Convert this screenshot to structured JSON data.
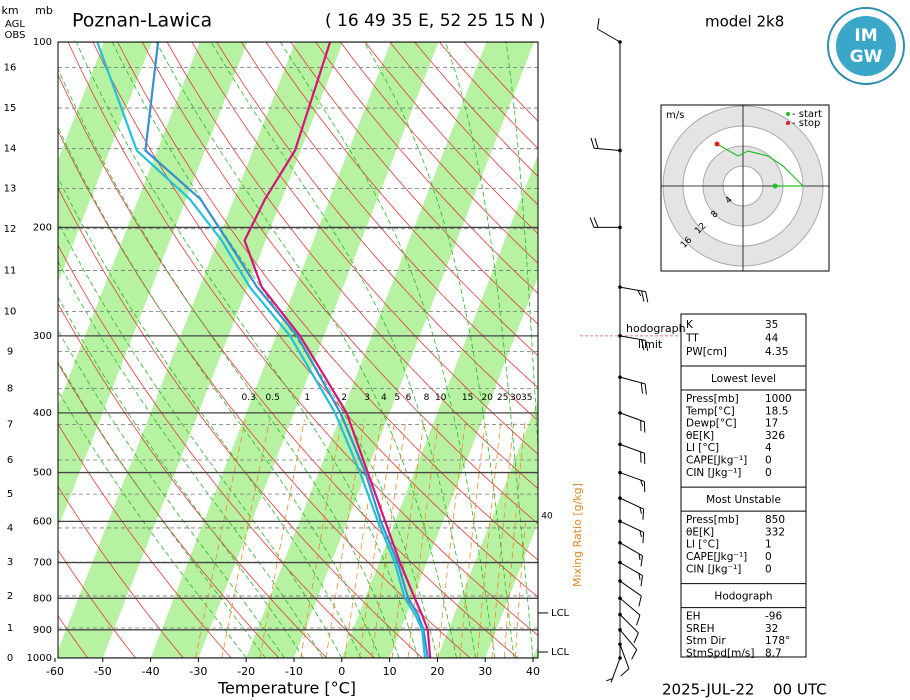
{
  "chart_data": {
    "type": "skewt",
    "title": "Poznan-Lawica",
    "subtitle": "( 16 49 35 E, 52 25 15 N )",
    "model": "model 2k8",
    "date": "2025-JUL-22",
    "time": "00 UTC",
    "x_label": "Temperature [°C]",
    "mixing_ratio_label": "Mixing Ratio [g/kg]",
    "height_unit": "km",
    "pressure_unit": "mb",
    "height_ref": [
      "AGL",
      "OBS"
    ],
    "xlim": [
      -60,
      40
    ],
    "xticks": [
      -60,
      -50,
      -40,
      -30,
      -20,
      -10,
      0,
      10,
      20,
      30,
      40
    ],
    "ylim": [
      1000,
      100
    ],
    "yticks": [
      100,
      200,
      300,
      400,
      500,
      600,
      700,
      800,
      900,
      1000
    ],
    "log_y": true,
    "height_ticks": [
      {
        "value": 0,
        "pressure": 1000
      },
      {
        "value": 1,
        "pressure": 894
      },
      {
        "value": 2,
        "pressure": 793
      },
      {
        "value": 3,
        "pressure": 699
      },
      {
        "value": 4,
        "pressure": 615
      },
      {
        "value": 5,
        "pressure": 542
      },
      {
        "value": 6,
        "pressure": 477
      },
      {
        "value": 7,
        "pressure": 418
      },
      {
        "value": 8,
        "pressure": 365
      },
      {
        "value": 9,
        "pressure": 318
      },
      {
        "value": 10,
        "pressure": 274
      },
      {
        "value": 11,
        "pressure": 235
      },
      {
        "value": 12,
        "pressure": 201
      },
      {
        "value": 13,
        "pressure": 173
      },
      {
        "value": 14,
        "pressure": 149
      },
      {
        "value": 15,
        "pressure": 128
      },
      {
        "value": 16,
        "pressure": 110
      }
    ],
    "pressure": [
      1000,
      900,
      850,
      800,
      700,
      600,
      500,
      400,
      300,
      250,
      210,
      180,
      150,
      100
    ],
    "series": [
      {
        "color": "#d4157c",
        "values": [
          18.5,
          15.7,
          13.2,
          10.4,
          4.4,
          -2.1,
          -9.7,
          -19,
          -35,
          -47,
          -54.4,
          -53.5,
          -51.2,
          -52.7
        ]
      },
      {
        "color": "#3a8fd0",
        "values": [
          18,
          14.8,
          12.4,
          9,
          3.9,
          -3,
          -10.2,
          -20.3,
          -35.6,
          -48,
          -58,
          -67,
          -82.5,
          -88.7
        ]
      },
      {
        "color": "#22c0dc",
        "values": [
          17.4,
          14.5,
          11.8,
          8.3,
          3.3,
          -3.6,
          -11.3,
          -21.4,
          -37.1,
          -49.5,
          -59.2,
          -69.2,
          -84.3,
          -101.4
        ]
      }
    ],
    "mixing_ratios": [
      0.3,
      0.5,
      1,
      2,
      3,
      4,
      5,
      6,
      8,
      10,
      15,
      20,
      25,
      30,
      35
    ],
    "mixing_ratio_extra": 40,
    "lcl": [
      {
        "label": "LCL",
        "pressure": 845
      },
      {
        "label": "LCL",
        "pressure": 978
      }
    ],
    "hodograph_limit": {
      "label": [
        "hodograph",
        "limit"
      ],
      "pressure": 300
    },
    "wind": {
      "pressure": [
        1000,
        950,
        900,
        850,
        800,
        750,
        700,
        650,
        600,
        550,
        500,
        450,
        400,
        350,
        300,
        250,
        200,
        150,
        100
      ],
      "direction": [
        200,
        160,
        140,
        135,
        130,
        125,
        120,
        120,
        115,
        115,
        110,
        110,
        110,
        105,
        100,
        100,
        270,
        275,
        300
      ],
      "speed": [
        5,
        10,
        10,
        10,
        10,
        10,
        15,
        15,
        15,
        15,
        15,
        20,
        20,
        20,
        20,
        25,
        20,
        20,
        10
      ]
    },
    "hodograph": {
      "unit": "m/s",
      "rings": [
        4,
        8,
        12,
        16
      ],
      "legend": [
        "- start",
        "- stop"
      ],
      "u": [
        6.4,
        12,
        8,
        5,
        1,
        -1,
        -5.2
      ],
      "v": [
        0,
        0,
        4,
        6,
        7,
        6,
        8.4
      ]
    }
  },
  "parameters": {
    "indices": [
      [
        "K",
        "35"
      ],
      [
        "TT",
        "44"
      ],
      [
        "PW[cm]",
        "4.35"
      ]
    ],
    "lowest_level": {
      "title": "Lowest level",
      "rows": [
        [
          "Press[mb]",
          "1000"
        ],
        [
          "Temp[°C]",
          "18.5"
        ],
        [
          "Dewp[°C]",
          "17"
        ],
        [
          "θE[K]",
          "326"
        ],
        [
          "LI [°C]",
          "4"
        ],
        [
          "CAPE[Jkg⁻¹]",
          "0"
        ],
        [
          "CIN [Jkg⁻¹]",
          "0"
        ]
      ]
    },
    "most_unstable": {
      "title": "Most Unstable",
      "rows": [
        [
          "Press[mb]",
          "850"
        ],
        [
          "θE[K]",
          "332"
        ],
        [
          "LI [°C]",
          "1"
        ],
        [
          "CAPE[Jkg⁻¹]",
          "0"
        ],
        [
          "CIN [Jkg⁻¹]",
          "0"
        ]
      ]
    },
    "hodograph_params": {
      "title": "Hodograph",
      "rows": [
        [
          "EH",
          "-96"
        ],
        [
          "SREH",
          "32"
        ],
        [
          "Stm Dir",
          "178°"
        ],
        [
          "StmSpd[m/s]",
          "8.7"
        ]
      ]
    }
  },
  "logo": [
    "IM",
    "GW"
  ]
}
